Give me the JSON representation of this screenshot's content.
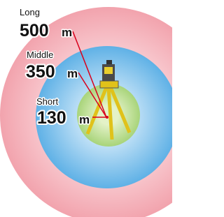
{
  "labels": [
    {
      "name": "Long",
      "value": 500,
      "unit": "m"
    },
    {
      "name": "Middle",
      "value": 350,
      "unit": "m"
    },
    {
      "name": "Short",
      "value": 130,
      "unit": "m"
    }
  ]
}
